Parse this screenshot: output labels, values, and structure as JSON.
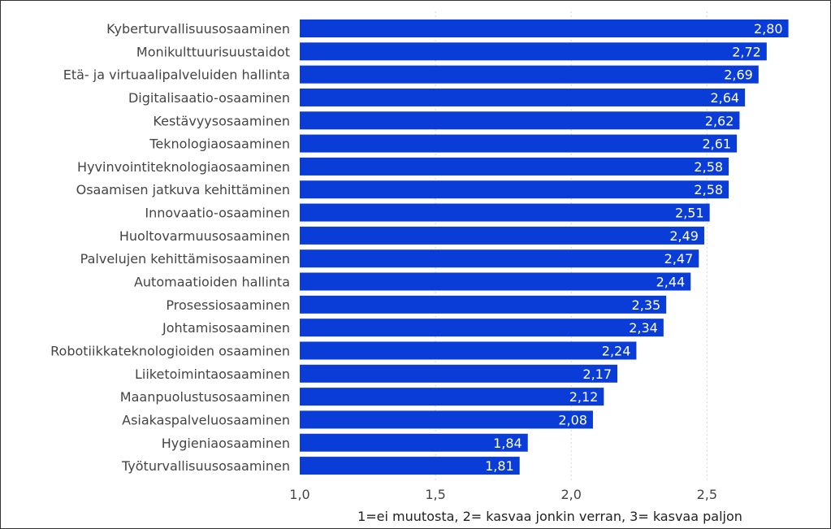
{
  "chart_data": {
    "type": "bar",
    "orientation": "horizontal",
    "categories": [
      "Kyberturvallisuusosaaminen",
      "Monikulttuurisuustaidot",
      "Etä- ja virtuaalipalveluiden hallinta",
      "Digitalisaatio-osaaminen",
      "Kestävyysosaaminen",
      "Teknologiaosaaminen",
      "Hyvinvointiteknologiaosaaminen",
      "Osaamisen jatkuva kehittäminen",
      "Innovaatio-osaaminen",
      "Huoltovarmuusosaaminen",
      "Palvelujen kehittämisosaaminen",
      "Automaatioiden hallinta",
      "Prosessiosaaminen",
      "Johtamisosaaminen",
      "Robotiikkateknologioiden osaaminen",
      "Liiketoimintaosaaminen",
      "Maanpuolustusosaaminen",
      "Asiakaspalveluosaaminen",
      "Hygieniaosaaminen",
      "Työturvallisuusosaaminen"
    ],
    "values": [
      2.8,
      2.72,
      2.69,
      2.64,
      2.62,
      2.61,
      2.58,
      2.58,
      2.51,
      2.49,
      2.47,
      2.44,
      2.35,
      2.34,
      2.24,
      2.17,
      2.12,
      2.08,
      1.84,
      1.81
    ],
    "value_labels": [
      "2,80",
      "2,72",
      "2,69",
      "2,64",
      "2,62",
      "2,61",
      "2,58",
      "2,58",
      "2,51",
      "2,49",
      "2,47",
      "2,44",
      "2,35",
      "2,34",
      "2,24",
      "2,17",
      "2,12",
      "2,08",
      "1,84",
      "1,81"
    ],
    "xlim": [
      1.0,
      2.9
    ],
    "xticks": [
      1.0,
      1.5,
      2.0,
      2.5
    ],
    "xtick_labels": [
      "1,0",
      "1,5",
      "2,0",
      "2,5"
    ],
    "xlabel": "1=ei muutosta, 2= kasvaa jonkin verran, 3= kasvaa paljon",
    "ylabel": "",
    "title": "",
    "grid": true,
    "legend": false,
    "bar_color": "#0a3cd7"
  }
}
